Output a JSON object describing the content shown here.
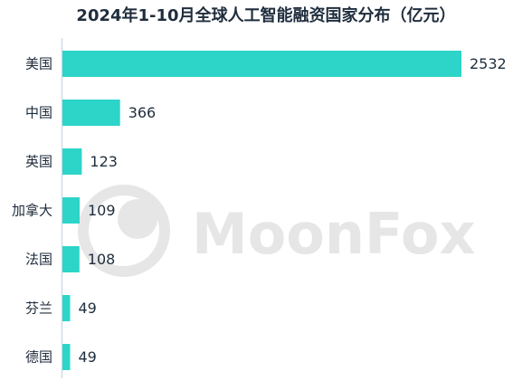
{
  "watermark": {
    "text": "MoonFox",
    "color": "#e6e6e6"
  },
  "chart_data": {
    "type": "bar",
    "orientation": "horizontal",
    "title": "2024年1-10月全球人工智能融资国家分布（亿元）",
    "categories": [
      "美国",
      "中国",
      "英国",
      "加拿大",
      "法国",
      "芬兰",
      "德国"
    ],
    "values": [
      2532,
      366,
      123,
      109,
      108,
      49,
      49
    ],
    "xlim": [
      0,
      2532
    ],
    "grid": false,
    "legend": "none",
    "colors": {
      "bar": "#2dd4c8",
      "axis": "#cfdbe8",
      "text": "#1f2d3d"
    }
  }
}
